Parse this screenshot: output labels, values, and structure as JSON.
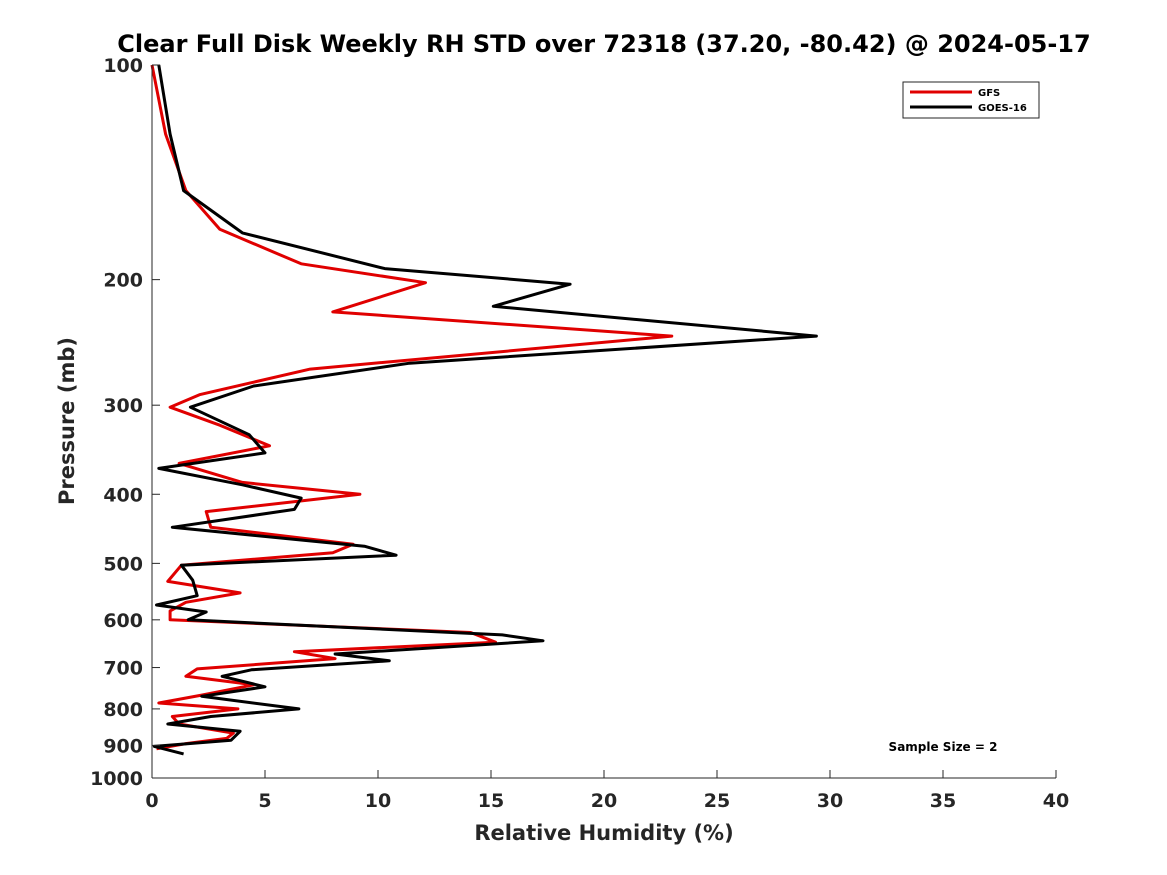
{
  "chart_data": {
    "type": "line",
    "title": "Clear Full Disk Weekly RH STD over 72318 (37.20, -80.42) @ 2024-05-17",
    "xlabel": "Relative Humidity (%)",
    "ylabel": "Pressure (mb)",
    "xlim": [
      0,
      40
    ],
    "ylim": [
      100,
      1000
    ],
    "y_scale": "log",
    "y_reversed": true,
    "x_ticks": [
      0,
      5,
      10,
      15,
      20,
      25,
      30,
      35,
      40
    ],
    "y_ticks": [
      100,
      200,
      300,
      400,
      500,
      600,
      700,
      800,
      900,
      1000
    ],
    "grid": false,
    "legend_position": "top-right",
    "series": [
      {
        "name": "GFS",
        "color": "#e00000",
        "points": [
          [
            0,
            100
          ],
          [
            0.6,
            125
          ],
          [
            1.5,
            150
          ],
          [
            3,
            170
          ],
          [
            6.6,
            190
          ],
          [
            12.1,
            202
          ],
          [
            8,
            222
          ],
          [
            23,
            240
          ],
          [
            7,
            267
          ],
          [
            2.1,
            290
          ],
          [
            0.8,
            302
          ],
          [
            3,
            320
          ],
          [
            5.2,
            342
          ],
          [
            1.2,
            362
          ],
          [
            4,
            385
          ],
          [
            9.2,
            400
          ],
          [
            2.4,
            423
          ],
          [
            2.6,
            445
          ],
          [
            8.9,
            470
          ],
          [
            8,
            483
          ],
          [
            1.3,
            503
          ],
          [
            0.7,
            530
          ],
          [
            3.9,
            550
          ],
          [
            1.5,
            567
          ],
          [
            0.8,
            583
          ],
          [
            0.8,
            600
          ],
          [
            14.1,
            625
          ],
          [
            15.2,
            645
          ],
          [
            6.3,
            665
          ],
          [
            8.1,
            680
          ],
          [
            2,
            703
          ],
          [
            1.5,
            720
          ],
          [
            4.5,
            740
          ],
          [
            2.2,
            765
          ],
          [
            0.3,
            785
          ],
          [
            3.8,
            800
          ],
          [
            0.9,
            820
          ],
          [
            1.2,
            840
          ],
          [
            3.6,
            865
          ],
          [
            3.3,
            880
          ],
          [
            1.5,
            895
          ],
          [
            0.2,
            910
          ]
        ]
      },
      {
        "name": "GOES-16",
        "color": "#000000",
        "points": [
          [
            0.3,
            100
          ],
          [
            0.8,
            125
          ],
          [
            1.4,
            150
          ],
          [
            4,
            172
          ],
          [
            10.3,
            193
          ],
          [
            18.5,
            203
          ],
          [
            15.1,
            218
          ],
          [
            29.4,
            240
          ],
          [
            11.4,
            262
          ],
          [
            4.5,
            282
          ],
          [
            1.7,
            302
          ],
          [
            4.3,
            330
          ],
          [
            5,
            350
          ],
          [
            0.3,
            368
          ],
          [
            4,
            388
          ],
          [
            6.6,
            405
          ],
          [
            6.3,
            420
          ],
          [
            0.9,
            445
          ],
          [
            9.4,
            473
          ],
          [
            10.8,
            487
          ],
          [
            1.3,
            503
          ],
          [
            1.8,
            528
          ],
          [
            2,
            555
          ],
          [
            0.2,
            572
          ],
          [
            2.4,
            585
          ],
          [
            1.6,
            600
          ],
          [
            15.5,
            630
          ],
          [
            17.3,
            642
          ],
          [
            8.1,
            670
          ],
          [
            10.5,
            685
          ],
          [
            4.4,
            705
          ],
          [
            3.1,
            720
          ],
          [
            5,
            745
          ],
          [
            2.2,
            768
          ],
          [
            6.5,
            800
          ],
          [
            2.6,
            820
          ],
          [
            0.7,
            840
          ],
          [
            3.9,
            860
          ],
          [
            3.5,
            885
          ],
          [
            0.1,
            903
          ],
          [
            1.4,
            925
          ]
        ]
      }
    ],
    "annotations": [
      "Sample Size = 2"
    ]
  }
}
